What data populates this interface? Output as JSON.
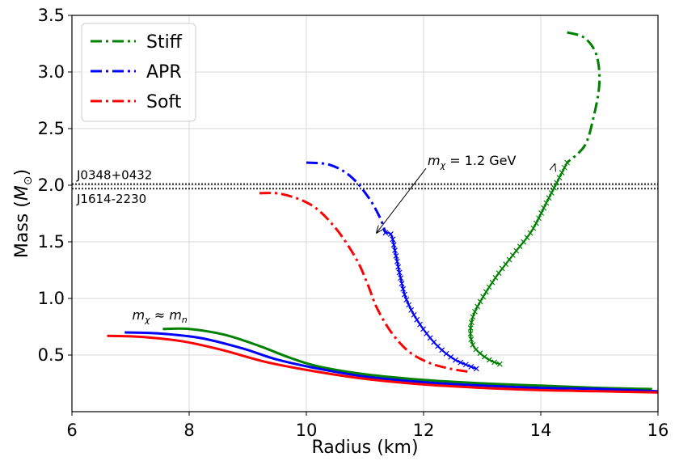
{
  "chart_data": {
    "type": "line",
    "title": "",
    "xlabel": "Radius (km)",
    "ylabel": "Mass (M_⊙)",
    "ylabel_main": "Mass (",
    "ylabel_sym": "M",
    "ylabel_sub": "⊙",
    "ylabel_close": ")",
    "xlim": [
      6,
      16
    ],
    "ylim": [
      0,
      3.5
    ],
    "xticks": [
      6,
      8,
      10,
      12,
      14,
      16
    ],
    "yticks": [
      0.5,
      1.0,
      1.5,
      2.0,
      2.5,
      3.0,
      3.5
    ],
    "grid": true,
    "legend_position": "top-left",
    "colors": {
      "Stiff": "#008000",
      "APR": "#0000ff",
      "Soft": "#ff0000"
    },
    "legend": [
      "Stiff",
      "APR",
      "Soft"
    ],
    "series": [
      {
        "name": "Stiff",
        "style": "dashdot",
        "kind": "mirror",
        "points": [
          [
            14.45,
            3.35
          ],
          [
            14.75,
            3.3
          ],
          [
            14.95,
            3.15
          ],
          [
            15.0,
            2.9
          ],
          [
            14.9,
            2.6
          ],
          [
            14.75,
            2.35
          ],
          [
            14.45,
            2.2
          ]
        ]
      },
      {
        "name": "Stiff",
        "style": "cross",
        "kind": "ordinary",
        "points": [
          [
            14.45,
            2.2
          ],
          [
            14.3,
            2.05
          ],
          [
            14.1,
            1.85
          ],
          [
            13.85,
            1.6
          ],
          [
            13.55,
            1.4
          ],
          [
            13.25,
            1.2
          ],
          [
            13.0,
            1.0
          ],
          [
            12.85,
            0.85
          ],
          [
            12.8,
            0.7
          ],
          [
            12.85,
            0.58
          ],
          [
            13.0,
            0.5
          ],
          [
            13.15,
            0.45
          ],
          [
            13.3,
            0.42
          ]
        ]
      },
      {
        "name": "APR",
        "style": "dashdot",
        "kind": "mirror",
        "points": [
          [
            10.0,
            2.2
          ],
          [
            10.4,
            2.18
          ],
          [
            10.75,
            2.08
          ],
          [
            11.05,
            1.9
          ],
          [
            11.25,
            1.72
          ],
          [
            11.35,
            1.58
          ]
        ]
      },
      {
        "name": "APR",
        "style": "cross",
        "kind": "ordinary",
        "points": [
          [
            11.35,
            1.58
          ],
          [
            11.45,
            1.56
          ],
          [
            11.52,
            1.4
          ],
          [
            11.6,
            1.2
          ],
          [
            11.7,
            1.0
          ],
          [
            11.9,
            0.8
          ],
          [
            12.2,
            0.6
          ],
          [
            12.5,
            0.47
          ],
          [
            12.75,
            0.41
          ],
          [
            12.9,
            0.38
          ]
        ]
      },
      {
        "name": "Soft",
        "style": "dashdot",
        "kind": "mirror",
        "points": [
          [
            9.2,
            1.93
          ],
          [
            9.6,
            1.92
          ],
          [
            10.1,
            1.82
          ],
          [
            10.5,
            1.62
          ],
          [
            10.85,
            1.35
          ],
          [
            11.05,
            1.12
          ],
          [
            11.2,
            0.92
          ],
          [
            11.45,
            0.7
          ],
          [
            11.75,
            0.53
          ],
          [
            12.1,
            0.43
          ],
          [
            12.45,
            0.38
          ],
          [
            12.8,
            0.35
          ]
        ]
      },
      {
        "name": "Stiff",
        "style": "solid",
        "kind": "admixed",
        "points": [
          [
            7.55,
            0.73
          ],
          [
            8.0,
            0.73
          ],
          [
            8.6,
            0.68
          ],
          [
            9.2,
            0.58
          ],
          [
            9.7,
            0.48
          ],
          [
            10.2,
            0.4
          ],
          [
            11.0,
            0.33
          ],
          [
            12.0,
            0.28
          ],
          [
            13.0,
            0.25
          ],
          [
            14.0,
            0.23
          ],
          [
            15.0,
            0.21
          ],
          [
            15.9,
            0.2
          ]
        ]
      },
      {
        "name": "APR",
        "style": "solid",
        "kind": "admixed",
        "points": [
          [
            6.9,
            0.7
          ],
          [
            7.5,
            0.69
          ],
          [
            8.2,
            0.65
          ],
          [
            8.9,
            0.56
          ],
          [
            9.5,
            0.46
          ],
          [
            10.2,
            0.38
          ],
          [
            11.0,
            0.31
          ],
          [
            12.0,
            0.26
          ],
          [
            13.0,
            0.23
          ],
          [
            14.0,
            0.21
          ],
          [
            15.0,
            0.2
          ],
          [
            16.0,
            0.18
          ]
        ]
      },
      {
        "name": "Soft",
        "style": "solid",
        "kind": "admixed",
        "points": [
          [
            6.6,
            0.67
          ],
          [
            7.2,
            0.66
          ],
          [
            7.9,
            0.62
          ],
          [
            8.6,
            0.54
          ],
          [
            9.3,
            0.44
          ],
          [
            10.1,
            0.36
          ],
          [
            11.0,
            0.29
          ],
          [
            12.0,
            0.24
          ],
          [
            13.0,
            0.21
          ],
          [
            14.0,
            0.19
          ],
          [
            15.0,
            0.18
          ],
          [
            16.0,
            0.17
          ]
        ]
      }
    ],
    "reference_lines": [
      {
        "y": 2.01,
        "label": "J0348+0432",
        "label_pos": "above"
      },
      {
        "y": 1.97,
        "label": "J1614-2230",
        "label_pos": "below"
      }
    ],
    "annotations": {
      "mchi_gev": {
        "sym": "m",
        "sub": "χ",
        "text": " = 1.2 GeV",
        "anchor": [
          12.0,
          2.22
        ],
        "arrow_targets": [
          [
            11.2,
            1.58
          ],
          [
            14.35,
            2.2
          ]
        ]
      },
      "mchi_mn": {
        "sym": "m",
        "sub": "χ",
        "mid": " ≈ ",
        "sym2": "m",
        "sub2": "n",
        "anchor": [
          7.0,
          0.8
        ]
      }
    }
  }
}
